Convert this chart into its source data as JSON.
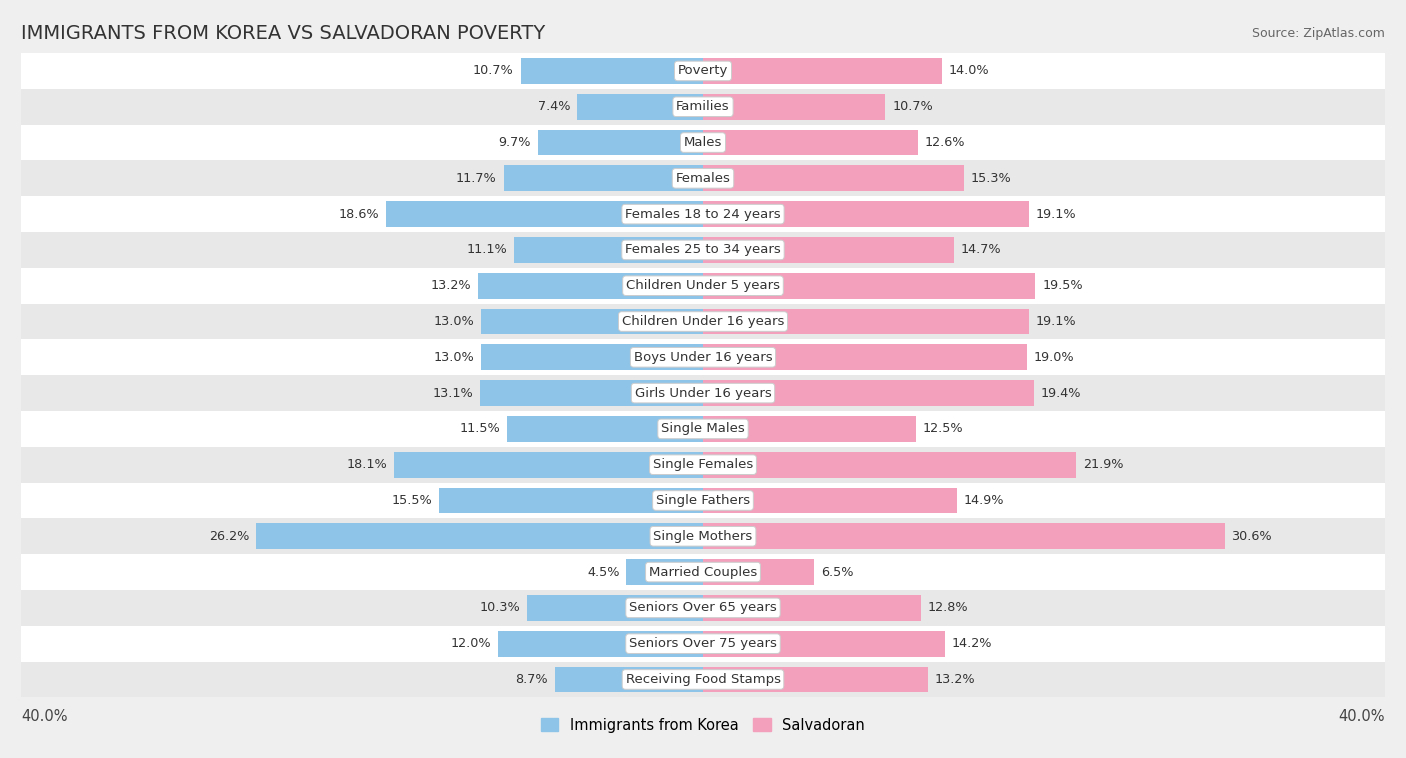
{
  "title": "IMMIGRANTS FROM KOREA VS SALVADORAN POVERTY",
  "source": "Source: ZipAtlas.com",
  "categories": [
    "Poverty",
    "Families",
    "Males",
    "Females",
    "Females 18 to 24 years",
    "Females 25 to 34 years",
    "Children Under 5 years",
    "Children Under 16 years",
    "Boys Under 16 years",
    "Girls Under 16 years",
    "Single Males",
    "Single Females",
    "Single Fathers",
    "Single Mothers",
    "Married Couples",
    "Seniors Over 65 years",
    "Seniors Over 75 years",
    "Receiving Food Stamps"
  ],
  "korea_values": [
    10.7,
    7.4,
    9.7,
    11.7,
    18.6,
    11.1,
    13.2,
    13.0,
    13.0,
    13.1,
    11.5,
    18.1,
    15.5,
    26.2,
    4.5,
    10.3,
    12.0,
    8.7
  ],
  "salvador_values": [
    14.0,
    10.7,
    12.6,
    15.3,
    19.1,
    14.7,
    19.5,
    19.1,
    19.0,
    19.4,
    12.5,
    21.9,
    14.9,
    30.6,
    6.5,
    12.8,
    14.2,
    13.2
  ],
  "korea_color": "#8DC4E8",
  "salvador_color": "#F2A0BC",
  "axis_limit": 40.0,
  "bar_height": 0.72,
  "bg_color": "#EFEFEF",
  "row_bg_even": "#FFFFFF",
  "row_bg_odd": "#E8E8E8",
  "label_fontsize": 9.5,
  "value_fontsize": 9.2,
  "title_fontsize": 14,
  "source_fontsize": 9,
  "legend_fontsize": 10.5
}
